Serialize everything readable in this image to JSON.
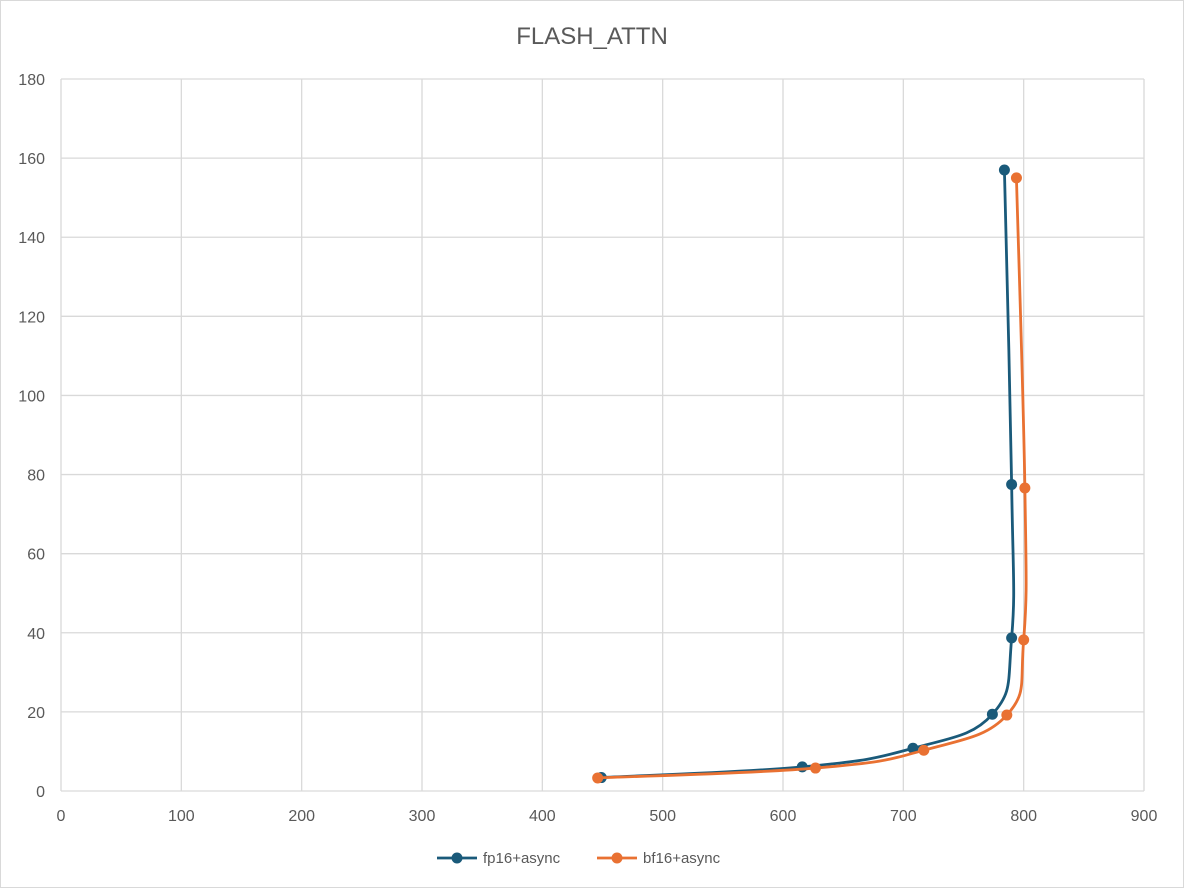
{
  "chart_data": {
    "type": "scatter",
    "title": "FLASH_ATTN",
    "xlabel": "",
    "ylabel": "",
    "xlim": [
      0,
      900
    ],
    "ylim": [
      0,
      180
    ],
    "x_ticks": [
      0,
      100,
      200,
      300,
      400,
      500,
      600,
      700,
      800,
      900
    ],
    "y_ticks": [
      0,
      20,
      40,
      60,
      80,
      100,
      120,
      140,
      160,
      180
    ],
    "grid": true,
    "legend_position": "bottom",
    "smooth_lines": true,
    "markers": true,
    "series": [
      {
        "name": "fp16+async",
        "color": "#1a5a7a",
        "points": [
          {
            "x": 449,
            "y": 3.4
          },
          {
            "x": 616,
            "y": 6.1
          },
          {
            "x": 708,
            "y": 10.8
          },
          {
            "x": 774,
            "y": 19.4
          },
          {
            "x": 790,
            "y": 38.7
          },
          {
            "x": 790,
            "y": 77.5
          },
          {
            "x": 784,
            "y": 157
          }
        ]
      },
      {
        "name": "bf16+async",
        "color": "#e97132",
        "points": [
          {
            "x": 446,
            "y": 3.3
          },
          {
            "x": 627,
            "y": 5.8
          },
          {
            "x": 717,
            "y": 10.3
          },
          {
            "x": 786,
            "y": 19.2
          },
          {
            "x": 800,
            "y": 38.2
          },
          {
            "x": 801,
            "y": 76.6
          },
          {
            "x": 794,
            "y": 155
          }
        ]
      }
    ]
  }
}
